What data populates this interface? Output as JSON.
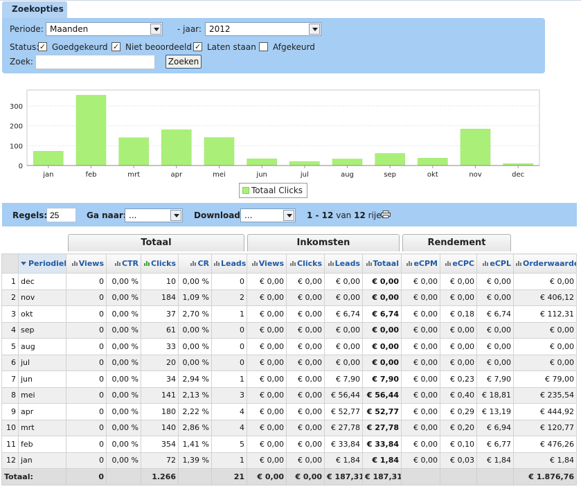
{
  "search": {
    "tab_label": "Zoekopties",
    "periode_label": "Periode:",
    "periode_value": "Maanden",
    "jaar_label": "- jaar:",
    "jaar_value": "2012",
    "status_label": "Status:",
    "statuses": [
      {
        "label": "Goedgekeurd",
        "checked": true
      },
      {
        "label": "Niet beoordeeld",
        "checked": true
      },
      {
        "label": "Laten staan",
        "checked": true
      },
      {
        "label": "Afgekeurd",
        "checked": false
      }
    ],
    "zoek_label": "Zoek:",
    "zoek_value": "",
    "zoeken_button": "Zoeken"
  },
  "chart_data": {
    "type": "bar",
    "categories": [
      "jan",
      "feb",
      "mrt",
      "apr",
      "mei",
      "jun",
      "jul",
      "aug",
      "sep",
      "okt",
      "nov",
      "dec"
    ],
    "series": [
      {
        "name": "Totaal Clicks",
        "values": [
          72,
          354,
          140,
          180,
          141,
          34,
          20,
          33,
          61,
          37,
          184,
          10
        ],
        "color": "#aaf078"
      }
    ],
    "yticks": [
      "0",
      "100",
      "200",
      "300"
    ],
    "ylim": [
      0,
      380
    ],
    "grid": true,
    "legend_position": "bottom-center"
  },
  "pager": {
    "regels_label": "Regels:",
    "regels_value": "25",
    "ganaar_label": "Ga naar:",
    "ganaar_value": "...",
    "download_label": "Download:",
    "download_value": "...",
    "range_text": "1 - 12",
    "van_text": "van",
    "total_text": "12",
    "rijen_text": "rijen"
  },
  "groups": [
    "Totaal",
    "Inkomsten",
    "Rendement"
  ],
  "table": {
    "headers": [
      "",
      "Periodiek",
      "Views",
      "CTR",
      "Clicks",
      "CR",
      "Leads",
      "Views",
      "Clicks",
      "Leads",
      "Totaal",
      "eCPM",
      "eCPC",
      "eCPL",
      "Orderwaarde"
    ],
    "rows": [
      [
        "1",
        "dec",
        "0",
        "0,00 %",
        "10",
        "0,00 %",
        "0",
        "€ 0,00",
        "€ 0,00",
        "€ 0,00",
        "€ 0,00",
        "€ 0,00",
        "€ 0,00",
        "€ 0,00",
        "€ 0,00"
      ],
      [
        "2",
        "nov",
        "0",
        "0,00 %",
        "184",
        "1,09 %",
        "2",
        "€ 0,00",
        "€ 0,00",
        "€ 0,00",
        "€ 0,00",
        "€ 0,00",
        "€ 0,00",
        "€ 0,00",
        "€ 406,12"
      ],
      [
        "3",
        "okt",
        "0",
        "0,00 %",
        "37",
        "2,70 %",
        "1",
        "€ 0,00",
        "€ 0,00",
        "€ 6,74",
        "€ 6,74",
        "€ 0,00",
        "€ 0,18",
        "€ 6,74",
        "€ 112,31"
      ],
      [
        "4",
        "sep",
        "0",
        "0,00 %",
        "61",
        "0,00 %",
        "0",
        "€ 0,00",
        "€ 0,00",
        "€ 0,00",
        "€ 0,00",
        "€ 0,00",
        "€ 0,00",
        "€ 0,00",
        "€ 0,00"
      ],
      [
        "5",
        "aug",
        "0",
        "0,00 %",
        "33",
        "0,00 %",
        "0",
        "€ 0,00",
        "€ 0,00",
        "€ 0,00",
        "€ 0,00",
        "€ 0,00",
        "€ 0,00",
        "€ 0,00",
        "€ 0,00"
      ],
      [
        "6",
        "jul",
        "0",
        "0,00 %",
        "20",
        "0,00 %",
        "0",
        "€ 0,00",
        "€ 0,00",
        "€ 0,00",
        "€ 0,00",
        "€ 0,00",
        "€ 0,00",
        "€ 0,00",
        "€ 0,00"
      ],
      [
        "7",
        "jun",
        "0",
        "0,00 %",
        "34",
        "2,94 %",
        "1",
        "€ 0,00",
        "€ 0,00",
        "€ 7,90",
        "€ 7,90",
        "€ 0,00",
        "€ 0,23",
        "€ 7,90",
        "€ 79,00"
      ],
      [
        "8",
        "mei",
        "0",
        "0,00 %",
        "141",
        "2,13 %",
        "3",
        "€ 0,00",
        "€ 0,00",
        "€ 56,44",
        "€ 56,44",
        "€ 0,00",
        "€ 0,40",
        "€ 18,81",
        "€ 235,54"
      ],
      [
        "9",
        "apr",
        "0",
        "0,00 %",
        "180",
        "2,22 %",
        "4",
        "€ 0,00",
        "€ 0,00",
        "€ 52,77",
        "€ 52,77",
        "€ 0,00",
        "€ 0,29",
        "€ 13,19",
        "€ 444,92"
      ],
      [
        "10",
        "mrt",
        "0",
        "0,00 %",
        "140",
        "2,86 %",
        "4",
        "€ 0,00",
        "€ 0,00",
        "€ 27,78",
        "€ 27,78",
        "€ 0,00",
        "€ 0,20",
        "€ 6,94",
        "€ 120,77"
      ],
      [
        "11",
        "feb",
        "0",
        "0,00 %",
        "354",
        "1,41 %",
        "5",
        "€ 0,00",
        "€ 0,00",
        "€ 33,84",
        "€ 33,84",
        "€ 0,00",
        "€ 0,10",
        "€ 6,77",
        "€ 476,26"
      ],
      [
        "12",
        "jan",
        "0",
        "0,00 %",
        "72",
        "1,39 %",
        "1",
        "€ 0,00",
        "€ 0,00",
        "€ 1,84",
        "€ 1,84",
        "€ 0,00",
        "€ 0,03",
        "€ 1,84",
        "€ 1,84"
      ]
    ],
    "totals": [
      "Totaal:",
      "0",
      "",
      "1.266",
      "",
      "21",
      "€ 0,00",
      "€ 0,00",
      "€ 187,31",
      "€ 187,31",
      "",
      "",
      "",
      "€ 1.876,76"
    ]
  }
}
